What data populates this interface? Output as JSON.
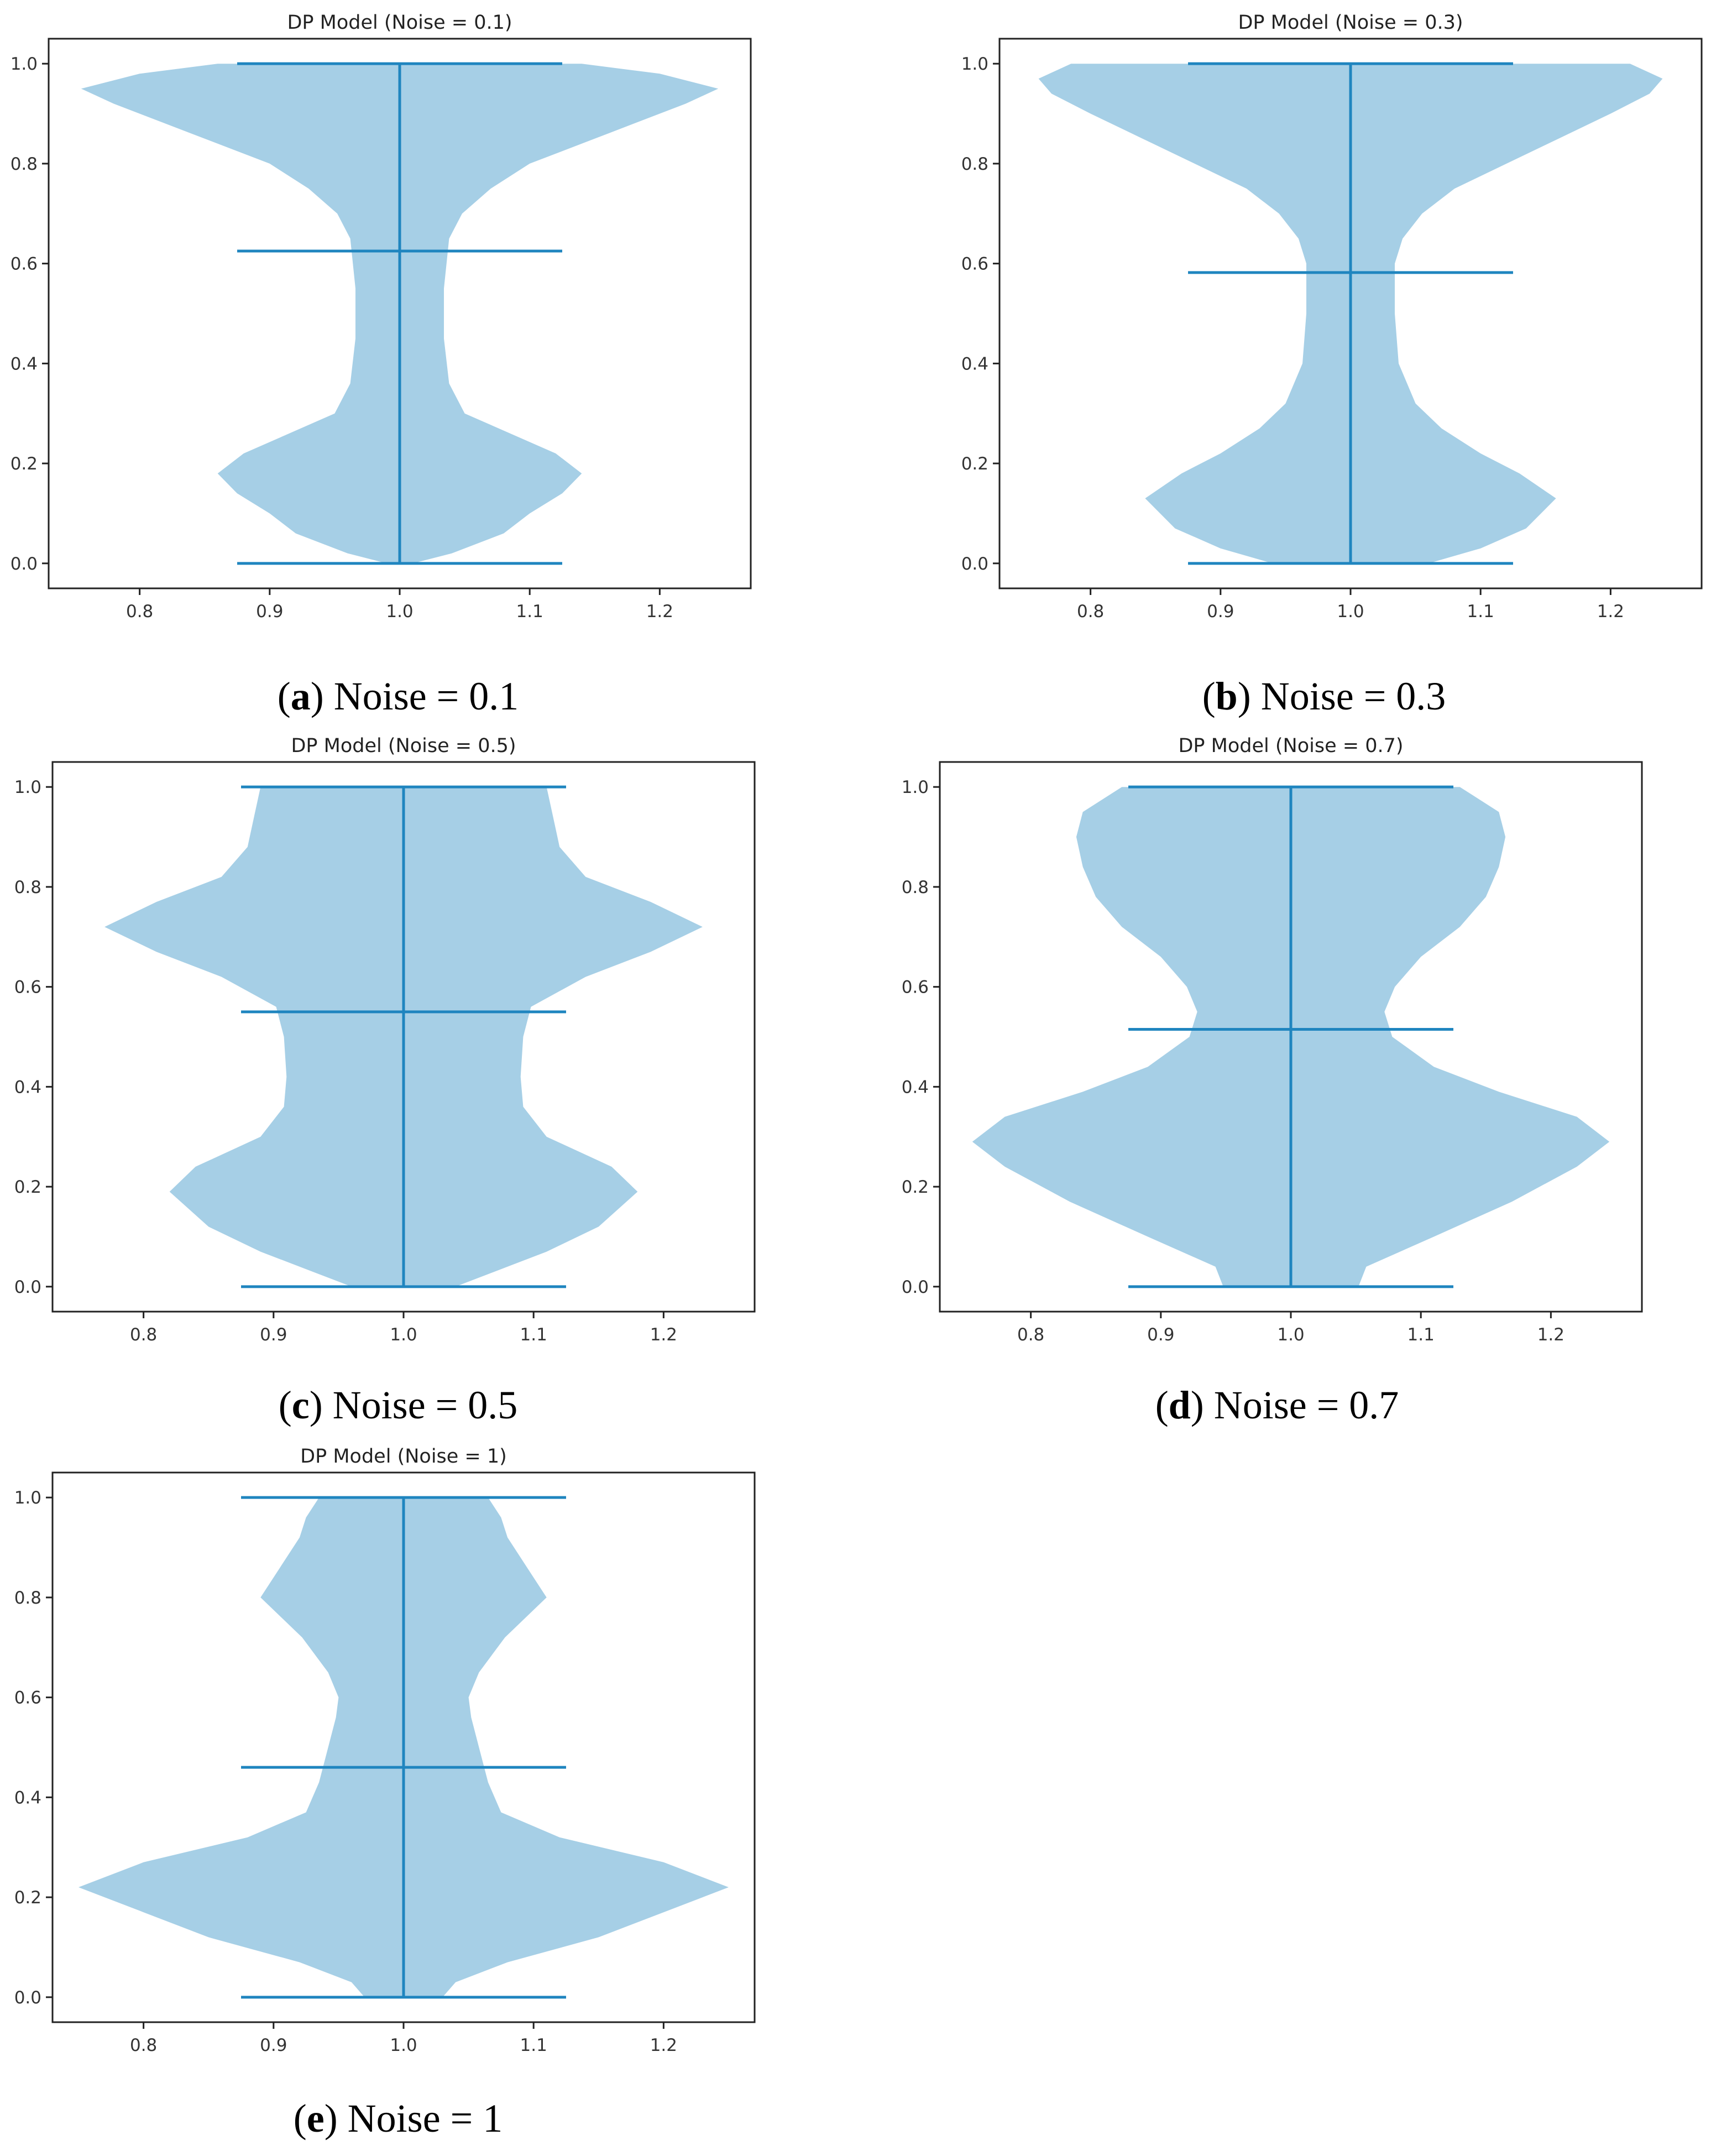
{
  "figure": {
    "body_color": "#a6cfe6",
    "line_color": "#1f85bf",
    "panels": [
      {
        "id": "a",
        "letter": "a",
        "caption": "Noise = 0.1"
      },
      {
        "id": "b",
        "letter": "b",
        "caption": "Noise = 0.3"
      },
      {
        "id": "c",
        "letter": "c",
        "caption": "Noise = 0.5"
      },
      {
        "id": "d",
        "letter": "d",
        "caption": "Noise = 0.7"
      },
      {
        "id": "e",
        "letter": "e",
        "caption": "Noise = 1"
      }
    ]
  },
  "chart_data": [
    {
      "type": "violin",
      "title": "DP Model (Noise = 0.1)",
      "xlim": [
        0.73,
        1.27
      ],
      "ylim": [
        -0.05,
        1.05
      ],
      "xticks": [
        0.8,
        0.9,
        1.0,
        1.1,
        1.2
      ],
      "xtick_labels": [
        "0.8",
        "0.9",
        "1.0",
        "1.1",
        "1.2"
      ],
      "yticks": [
        0.0,
        0.2,
        0.4,
        0.6,
        0.8,
        1.0
      ],
      "ytick_labels": [
        "0.0",
        "0.2",
        "0.4",
        "0.6",
        "0.8",
        "1.0"
      ],
      "position": 1.0,
      "min": 0.0,
      "max": 1.0,
      "mean": 0.625,
      "cap_halfwidth": 0.125,
      "profile": [
        [
          0.0,
          0.01
        ],
        [
          0.02,
          0.04
        ],
        [
          0.06,
          0.08
        ],
        [
          0.1,
          0.1
        ],
        [
          0.14,
          0.125
        ],
        [
          0.18,
          0.14
        ],
        [
          0.22,
          0.12
        ],
        [
          0.26,
          0.085
        ],
        [
          0.3,
          0.05
        ],
        [
          0.36,
          0.038
        ],
        [
          0.45,
          0.034
        ],
        [
          0.55,
          0.034
        ],
        [
          0.65,
          0.038
        ],
        [
          0.7,
          0.048
        ],
        [
          0.75,
          0.07
        ],
        [
          0.8,
          0.1
        ],
        [
          0.86,
          0.16
        ],
        [
          0.92,
          0.22
        ],
        [
          0.95,
          0.245
        ],
        [
          0.98,
          0.2
        ],
        [
          1.0,
          0.14
        ]
      ]
    },
    {
      "type": "violin",
      "title": "DP Model (Noise = 0.3)",
      "xlim": [
        0.73,
        1.27
      ],
      "ylim": [
        -0.05,
        1.05
      ],
      "xticks": [
        0.8,
        0.9,
        1.0,
        1.1,
        1.2
      ],
      "xtick_labels": [
        "0.8",
        "0.9",
        "1.0",
        "1.1",
        "1.2"
      ],
      "yticks": [
        0.0,
        0.2,
        0.4,
        0.6,
        0.8,
        1.0
      ],
      "ytick_labels": [
        "0.0",
        "0.2",
        "0.4",
        "0.6",
        "0.8",
        "1.0"
      ],
      "position": 1.0,
      "min": 0.0,
      "max": 1.0,
      "mean": 0.582,
      "cap_halfwidth": 0.125,
      "profile": [
        [
          0.0,
          0.06
        ],
        [
          0.03,
          0.1
        ],
        [
          0.07,
          0.135
        ],
        [
          0.13,
          0.158
        ],
        [
          0.18,
          0.13
        ],
        [
          0.22,
          0.1
        ],
        [
          0.27,
          0.07
        ],
        [
          0.32,
          0.05
        ],
        [
          0.4,
          0.037
        ],
        [
          0.5,
          0.034
        ],
        [
          0.6,
          0.034
        ],
        [
          0.65,
          0.04
        ],
        [
          0.7,
          0.055
        ],
        [
          0.75,
          0.08
        ],
        [
          0.8,
          0.12
        ],
        [
          0.85,
          0.16
        ],
        [
          0.9,
          0.2
        ],
        [
          0.94,
          0.23
        ],
        [
          0.97,
          0.24
        ],
        [
          1.0,
          0.215
        ]
      ]
    },
    {
      "type": "violin",
      "title": "DP Model (Noise = 0.5)",
      "xlim": [
        0.73,
        1.27
      ],
      "ylim": [
        -0.05,
        1.05
      ],
      "xticks": [
        0.8,
        0.9,
        1.0,
        1.1,
        1.2
      ],
      "xtick_labels": [
        "0.8",
        "0.9",
        "1.0",
        "1.1",
        "1.2"
      ],
      "yticks": [
        0.0,
        0.2,
        0.4,
        0.6,
        0.8,
        1.0
      ],
      "ytick_labels": [
        "0.0",
        "0.2",
        "0.4",
        "0.6",
        "0.8",
        "1.0"
      ],
      "position": 1.0,
      "min": 0.0,
      "max": 1.0,
      "mean": 0.55,
      "cap_halfwidth": 0.125,
      "profile": [
        [
          0.0,
          0.04
        ],
        [
          0.03,
          0.07
        ],
        [
          0.07,
          0.11
        ],
        [
          0.12,
          0.15
        ],
        [
          0.19,
          0.18
        ],
        [
          0.24,
          0.16
        ],
        [
          0.3,
          0.11
        ],
        [
          0.36,
          0.092
        ],
        [
          0.42,
          0.09
        ],
        [
          0.5,
          0.092
        ],
        [
          0.56,
          0.098
        ],
        [
          0.62,
          0.14
        ],
        [
          0.67,
          0.19
        ],
        [
          0.72,
          0.23
        ],
        [
          0.77,
          0.19
        ],
        [
          0.82,
          0.14
        ],
        [
          0.88,
          0.12
        ],
        [
          0.94,
          0.115
        ],
        [
          1.0,
          0.11
        ]
      ]
    },
    {
      "type": "violin",
      "title": "DP Model (Noise = 0.7)",
      "xlim": [
        0.73,
        1.27
      ],
      "ylim": [
        -0.05,
        1.05
      ],
      "xticks": [
        0.8,
        0.9,
        1.0,
        1.1,
        1.2
      ],
      "xtick_labels": [
        "0.8",
        "0.9",
        "1.0",
        "1.1",
        "1.2"
      ],
      "yticks": [
        0.0,
        0.2,
        0.4,
        0.6,
        0.8,
        1.0
      ],
      "ytick_labels": [
        "0.0",
        "0.2",
        "0.4",
        "0.6",
        "0.8",
        "1.0"
      ],
      "position": 1.0,
      "min": 0.0,
      "max": 1.0,
      "mean": 0.515,
      "cap_halfwidth": 0.125,
      "profile": [
        [
          0.0,
          0.052
        ],
        [
          0.04,
          0.058
        ],
        [
          0.1,
          0.11
        ],
        [
          0.17,
          0.17
        ],
        [
          0.24,
          0.22
        ],
        [
          0.29,
          0.245
        ],
        [
          0.34,
          0.22
        ],
        [
          0.39,
          0.16
        ],
        [
          0.44,
          0.11
        ],
        [
          0.5,
          0.078
        ],
        [
          0.55,
          0.072
        ],
        [
          0.6,
          0.08
        ],
        [
          0.66,
          0.1
        ],
        [
          0.72,
          0.13
        ],
        [
          0.78,
          0.15
        ],
        [
          0.84,
          0.16
        ],
        [
          0.9,
          0.165
        ],
        [
          0.95,
          0.16
        ],
        [
          1.0,
          0.13
        ]
      ]
    },
    {
      "type": "violin",
      "title": "DP Model (Noise = 1)",
      "xlim": [
        0.73,
        1.27
      ],
      "ylim": [
        -0.05,
        1.05
      ],
      "xticks": [
        0.8,
        0.9,
        1.0,
        1.1,
        1.2
      ],
      "xtick_labels": [
        "0.8",
        "0.9",
        "1.0",
        "1.1",
        "1.2"
      ],
      "yticks": [
        0.0,
        0.2,
        0.4,
        0.6,
        0.8,
        1.0
      ],
      "ytick_labels": [
        "0.0",
        "0.2",
        "0.4",
        "0.6",
        "0.8",
        "1.0"
      ],
      "position": 1.0,
      "min": 0.0,
      "max": 1.0,
      "mean": 0.46,
      "cap_halfwidth": 0.125,
      "profile": [
        [
          0.0,
          0.03
        ],
        [
          0.03,
          0.04
        ],
        [
          0.07,
          0.08
        ],
        [
          0.12,
          0.15
        ],
        [
          0.17,
          0.2
        ],
        [
          0.22,
          0.25
        ],
        [
          0.27,
          0.2
        ],
        [
          0.32,
          0.12
        ],
        [
          0.37,
          0.075
        ],
        [
          0.43,
          0.065
        ],
        [
          0.5,
          0.058
        ],
        [
          0.56,
          0.052
        ],
        [
          0.6,
          0.05
        ],
        [
          0.65,
          0.058
        ],
        [
          0.72,
          0.078
        ],
        [
          0.8,
          0.11
        ],
        [
          0.86,
          0.095
        ],
        [
          0.92,
          0.08
        ],
        [
          0.96,
          0.075
        ],
        [
          1.0,
          0.065
        ]
      ]
    }
  ]
}
